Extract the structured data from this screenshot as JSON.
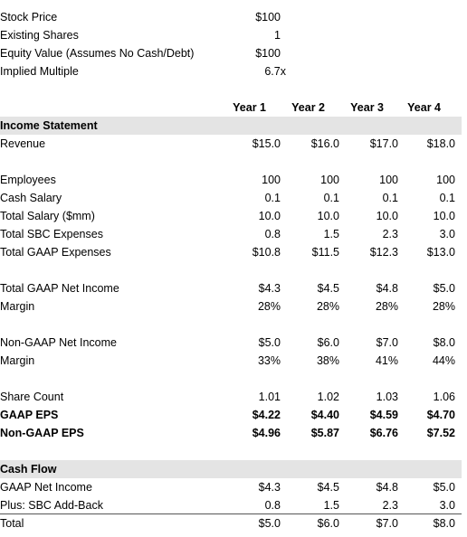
{
  "summary": [
    {
      "label": "Stock Price",
      "value": "$100"
    },
    {
      "label": "Existing Shares",
      "value": "1"
    },
    {
      "label": "Equity Value (Assumes No Cash/Debt)",
      "value": "$100"
    },
    {
      "label": "Implied Multiple",
      "value": "6.7x"
    }
  ],
  "table": {
    "columns": [
      "Year 1",
      "Year 2",
      "Year 3",
      "Year 4"
    ],
    "sections": [
      {
        "title": "Income Statement",
        "rows": [
          {
            "label": "Revenue",
            "values": [
              "$15.0",
              "$16.0",
              "$17.0",
              "$18.0"
            ]
          }
        ]
      },
      {
        "rows": [
          {
            "label": "Employees",
            "values": [
              "100",
              "100",
              "100",
              "100"
            ]
          },
          {
            "label": "Cash Salary",
            "values": [
              "0.1",
              "0.1",
              "0.1",
              "0.1"
            ]
          },
          {
            "label": "Total Salary ($mm)",
            "values": [
              "10.0",
              "10.0",
              "10.0",
              "10.0"
            ]
          },
          {
            "label": "Total SBC Expenses",
            "values": [
              "0.8",
              "1.5",
              "2.3",
              "3.0"
            ]
          },
          {
            "label": "Total GAAP Expenses",
            "values": [
              "$10.8",
              "$11.5",
              "$12.3",
              "$13.0"
            ]
          }
        ]
      },
      {
        "rows": [
          {
            "label": "Total GAAP Net Income",
            "values": [
              "$4.3",
              "$4.5",
              "$4.8",
              "$5.0"
            ]
          },
          {
            "label": "Margin",
            "values": [
              "28%",
              "28%",
              "28%",
              "28%"
            ]
          }
        ]
      },
      {
        "rows": [
          {
            "label": "Non-GAAP Net Income",
            "values": [
              "$5.0",
              "$6.0",
              "$7.0",
              "$8.0"
            ]
          },
          {
            "label": "Margin",
            "values": [
              "33%",
              "38%",
              "41%",
              "44%"
            ]
          }
        ]
      },
      {
        "rows": [
          {
            "label": "Share Count",
            "values": [
              "1.01",
              "1.02",
              "1.03",
              "1.06"
            ]
          },
          {
            "label": "GAAP EPS",
            "values": [
              "$4.22",
              "$4.40",
              "$4.59",
              "$4.70"
            ],
            "bold": true
          },
          {
            "label": "Non-GAAP EPS",
            "values": [
              "$4.96",
              "$5.87",
              "$6.76",
              "$7.52"
            ],
            "bold": true
          }
        ]
      },
      {
        "title": "Cash Flow",
        "rows": [
          {
            "label": "GAAP Net Income",
            "values": [
              "$4.3",
              "$4.5",
              "$4.8",
              "$5.0"
            ]
          },
          {
            "label": "Plus: SBC Add-Back",
            "values": [
              "0.8",
              "1.5",
              "2.3",
              "3.0"
            ],
            "border_below": true
          },
          {
            "label": "Total",
            "values": [
              "$5.0",
              "$6.0",
              "$7.0",
              "$8.0"
            ]
          }
        ]
      }
    ]
  }
}
